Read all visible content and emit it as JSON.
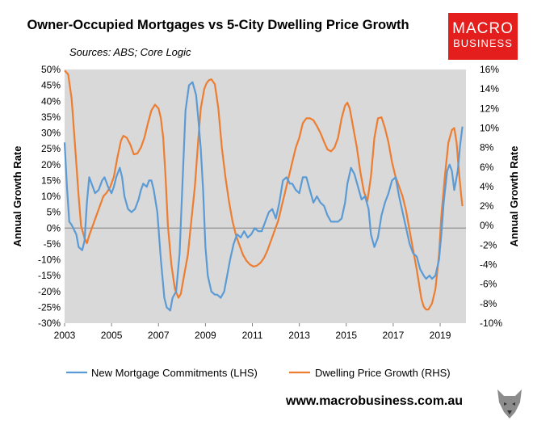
{
  "title": "Owner-Occupied Mortgages vs 5-City Dwelling Price Growth",
  "subtitle": "Sources: ABS; Core Logic",
  "logo": {
    "line1": "MACRO",
    "line2": "BUSINESS",
    "color": "#e41d1d"
  },
  "footer_url": "www.macrobusiness.com.au",
  "colors": {
    "mortgage": "#5b9bd5",
    "price": "#ed7d31",
    "plot_bg": "#d9d9d9"
  },
  "chart_data": {
    "type": "line",
    "title": "Owner-Occupied Mortgages vs 5-City Dwelling Price Growth",
    "ylabel_left": "Annual Growth Rate",
    "ylabel_right": "Annual Growth Rate",
    "xlim": [
      2003,
      2020.1
    ],
    "ylim_left": [
      -30,
      50
    ],
    "ylim_right": [
      -10,
      16
    ],
    "x_ticks": [
      2003,
      2005,
      2007,
      2009,
      2011,
      2013,
      2015,
      2017,
      2019
    ],
    "x_tick_labels": [
      "2003",
      "2005",
      "2007",
      "2009",
      "2011",
      "2013",
      "2015",
      "2017",
      "2019"
    ],
    "y_left_ticks": [
      50,
      45,
      40,
      35,
      30,
      25,
      20,
      15,
      10,
      5,
      0,
      -5,
      -10,
      -15,
      -20,
      -25,
      -30
    ],
    "y_left_tick_labels": [
      "50%",
      "45%",
      "40%",
      "35%",
      "30%",
      "25%",
      "20%",
      "15%",
      "10%",
      "5%",
      "0%",
      "-5%",
      "-10%",
      "-15%",
      "-20%",
      "-25%",
      "-30%"
    ],
    "y_right_ticks": [
      16,
      14,
      12,
      10,
      8,
      6,
      4,
      2,
      0,
      -2,
      -4,
      -6,
      -8,
      -10
    ],
    "y_right_tick_labels": [
      "16%",
      "14%",
      "12%",
      "10%",
      "8%",
      "6%",
      "4%",
      "2%",
      "0%",
      "-2%",
      "-4%",
      "-6%",
      "-8%",
      "-10%"
    ],
    "grid": false,
    "legend_position": "bottom",
    "series": [
      {
        "name": "New Mortgage Commitments (LHS)",
        "axis": "left",
        "color": "#5b9bd5",
        "x": [
          2003.0,
          2003.1,
          2003.2,
          2003.3,
          2003.5,
          2003.6,
          2003.75,
          2003.85,
          2003.95,
          2004.05,
          2004.15,
          2004.3,
          2004.45,
          2004.6,
          2004.7,
          2004.85,
          2005.0,
          2005.1,
          2005.2,
          2005.35,
          2005.45,
          2005.55,
          2005.7,
          2005.85,
          2006.0,
          2006.15,
          2006.25,
          2006.35,
          2006.5,
          2006.6,
          2006.7,
          2006.8,
          2006.95,
          2007.1,
          2007.25,
          2007.35,
          2007.5,
          2007.6,
          2007.75,
          2007.9,
          2008.0,
          2008.15,
          2008.3,
          2008.45,
          2008.6,
          2008.7,
          2008.8,
          2008.9,
          2009.0,
          2009.1,
          2009.25,
          2009.4,
          2009.5,
          2009.65,
          2009.8,
          2009.95,
          2010.05,
          2010.2,
          2010.35,
          2010.5,
          2010.65,
          2010.8,
          2010.95,
          2011.1,
          2011.25,
          2011.4,
          2011.55,
          2011.7,
          2011.85,
          2012.0,
          2012.15,
          2012.3,
          2012.45,
          2012.6,
          2012.7,
          2012.85,
          2013.0,
          2013.15,
          2013.3,
          2013.45,
          2013.6,
          2013.75,
          2013.9,
          2014.05,
          2014.2,
          2014.35,
          2014.5,
          2014.65,
          2014.8,
          2014.95,
          2015.05,
          2015.2,
          2015.35,
          2015.5,
          2015.65,
          2015.8,
          2015.95,
          2016.05,
          2016.2,
          2016.35,
          2016.5,
          2016.65,
          2016.8,
          2016.95,
          2017.1,
          2017.25,
          2017.4,
          2017.55,
          2017.7,
          2017.85,
          2018.0,
          2018.15,
          2018.3,
          2018.4,
          2018.55,
          2018.65,
          2018.8,
          2018.95,
          2019.05,
          2019.15,
          2019.3,
          2019.4,
          2019.5,
          2019.6,
          2019.75,
          2019.85,
          2019.95
        ],
        "values": [
          27,
          13,
          2,
          1,
          -2,
          -6,
          -7,
          -4,
          8,
          16,
          14,
          11,
          12,
          15,
          16,
          13,
          11,
          13,
          16,
          19,
          16,
          10,
          6,
          5,
          6,
          9,
          12,
          14,
          13,
          15,
          15,
          12,
          5,
          -10,
          -22,
          -25,
          -26,
          -22,
          -20,
          -8,
          10,
          37,
          45,
          46,
          42,
          34,
          25,
          12,
          -6,
          -15,
          -20,
          -21,
          -21,
          -22,
          -20,
          -14,
          -10,
          -5,
          -2,
          -3,
          -1,
          -3,
          -2,
          0,
          -1,
          -1,
          2,
          5,
          6,
          3,
          8,
          15,
          16,
          14,
          14,
          12,
          11,
          16,
          16,
          12,
          8,
          10,
          8,
          7,
          4,
          2,
          2,
          2,
          3,
          8,
          14,
          19,
          17,
          13,
          9,
          10,
          6,
          -2,
          -6,
          -3,
          4,
          8,
          11,
          15,
          16,
          10,
          5,
          0,
          -5,
          -8,
          -9,
          -13,
          -15,
          -16,
          -15,
          -16,
          -15,
          -10,
          -2,
          8,
          18,
          20,
          18,
          12,
          18,
          26,
          32
        ]
      },
      {
        "name": "Dwelling Price Growth (RHS)",
        "axis": "right",
        "color": "#ed7d31",
        "x": [
          2003.0,
          2003.15,
          2003.3,
          2003.45,
          2003.6,
          2003.7,
          2003.85,
          2003.95,
          2004.05,
          2004.2,
          2004.35,
          2004.5,
          2004.65,
          2004.8,
          2004.95,
          2005.1,
          2005.25,
          2005.4,
          2005.5,
          2005.65,
          2005.8,
          2005.95,
          2006.1,
          2006.25,
          2006.4,
          2006.55,
          2006.7,
          2006.85,
          2007.0,
          2007.1,
          2007.2,
          2007.3,
          2007.4,
          2007.55,
          2007.7,
          2007.85,
          2007.95,
          2008.1,
          2008.25,
          2008.4,
          2008.55,
          2008.7,
          2008.8,
          2008.95,
          2009.05,
          2009.15,
          2009.25,
          2009.4,
          2009.55,
          2009.7,
          2009.85,
          2010.0,
          2010.15,
          2010.3,
          2010.45,
          2010.6,
          2010.75,
          2010.9,
          2011.05,
          2011.2,
          2011.35,
          2011.5,
          2011.65,
          2011.8,
          2011.95,
          2012.1,
          2012.25,
          2012.4,
          2012.55,
          2012.7,
          2012.85,
          2013.0,
          2013.15,
          2013.3,
          2013.45,
          2013.6,
          2013.75,
          2013.9,
          2014.05,
          2014.2,
          2014.35,
          2014.5,
          2014.65,
          2014.8,
          2014.95,
          2015.05,
          2015.15,
          2015.3,
          2015.45,
          2015.6,
          2015.75,
          2015.9,
          2016.05,
          2016.2,
          2016.35,
          2016.5,
          2016.65,
          2016.8,
          2016.95,
          2017.1,
          2017.25,
          2017.4,
          2017.55,
          2017.7,
          2017.85,
          2018.0,
          2018.1,
          2018.2,
          2018.3,
          2018.4,
          2018.5,
          2018.65,
          2018.8,
          2018.95,
          2019.05,
          2019.2,
          2019.35,
          2019.5,
          2019.6,
          2019.7,
          2019.8,
          2019.9,
          2019.95
        ],
        "values": [
          15.9,
          15.5,
          13,
          8,
          3,
          0,
          -1.3,
          -1.8,
          -1,
          0,
          1,
          2,
          3,
          3.4,
          4,
          5,
          7,
          8.7,
          9.2,
          9,
          8.3,
          7.3,
          7.4,
          8,
          9,
          10.5,
          11.8,
          12.4,
          12,
          11,
          9,
          5,
          0,
          -4,
          -6.5,
          -7.4,
          -7,
          -5,
          -3,
          0.5,
          4,
          9,
          12,
          14,
          14.6,
          14.9,
          15,
          14.5,
          12,
          8,
          5,
          2.5,
          0.5,
          -1,
          -2,
          -3,
          -3.6,
          -4,
          -4.2,
          -4.1,
          -3.8,
          -3.3,
          -2.5,
          -1.5,
          -0.5,
          0.5,
          2,
          3.5,
          5,
          6.5,
          8,
          9,
          10.5,
          11,
          11,
          10.8,
          10.2,
          9.5,
          8.6,
          7.8,
          7.6,
          8,
          9,
          11,
          12.3,
          12.6,
          12,
          10,
          8,
          5.5,
          3.5,
          2.5,
          5,
          9,
          11,
          11.1,
          10,
          8.5,
          6.5,
          5,
          4,
          3,
          1.5,
          -0.5,
          -2.5,
          -4.5,
          -6,
          -7.5,
          -8.3,
          -8.6,
          -8.6,
          -8,
          -6.5,
          -3,
          1,
          5,
          8.5,
          9.8,
          10,
          8.5,
          5.5,
          3,
          2
        ]
      }
    ]
  }
}
